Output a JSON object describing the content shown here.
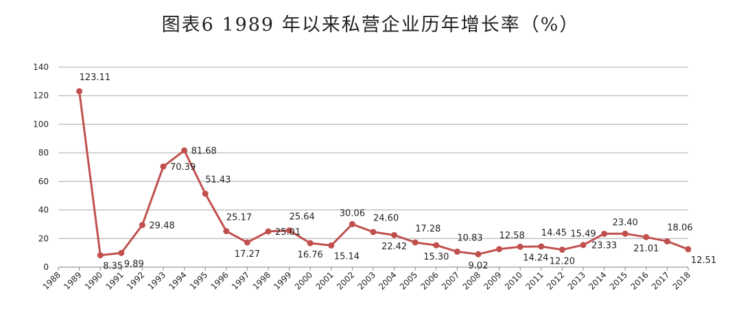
{
  "title": "图表6 1989 年以来私营企业历年增长率（%）",
  "colors": {
    "series": "#c0504d",
    "grid": "#a6a6a6",
    "axis": "#808080",
    "text": "#222222"
  },
  "chart_data": {
    "type": "line",
    "title": "图表6 1989 年以来私营企业历年增长率（%）",
    "xlabel": "",
    "ylabel": "",
    "categories": [
      "1988",
      "1989",
      "1990",
      "1991",
      "1992",
      "1993",
      "1994",
      "1995",
      "1996",
      "1997",
      "1998",
      "1999",
      "2000",
      "2001",
      "2002",
      "2003",
      "2004",
      "2005",
      "2006",
      "2007",
      "2008",
      "2009",
      "2010",
      "2011",
      "2012",
      "2013",
      "2014",
      "2015",
      "2016",
      "2017",
      "2018"
    ],
    "y_ticks": [
      "0",
      "20",
      "40",
      "60",
      "80",
      "100",
      "120",
      "140"
    ],
    "ylim": [
      0,
      140
    ],
    "grid": true,
    "legend": "none",
    "series": [
      {
        "values": [
          null,
          123.11,
          8.35,
          9.89,
          29.48,
          70.39,
          81.68,
          51.43,
          25.17,
          17.27,
          25.01,
          25.64,
          16.76,
          15.14,
          30.06,
          24.6,
          22.42,
          17.28,
          15.3,
          10.83,
          9.02,
          12.58,
          14.24,
          14.45,
          12.2,
          15.49,
          23.33,
          23.4,
          21.01,
          18.06,
          12.51
        ],
        "labels": [
          null,
          "123.11",
          "8.35",
          "9.89",
          "29.48",
          "70.39",
          "81.68",
          "51.43",
          "25.17",
          "17.27",
          "25.01",
          "25.64",
          "16.76",
          "15.14",
          "30.06",
          "24.60",
          "22.42",
          "17.28",
          "15.30",
          "10.83",
          "9.02",
          "12.58",
          "14.24",
          "14.45",
          "12.20",
          "15.49",
          "23.33",
          "23.40",
          "21.01",
          "18.06",
          "12.51"
        ]
      }
    ]
  }
}
